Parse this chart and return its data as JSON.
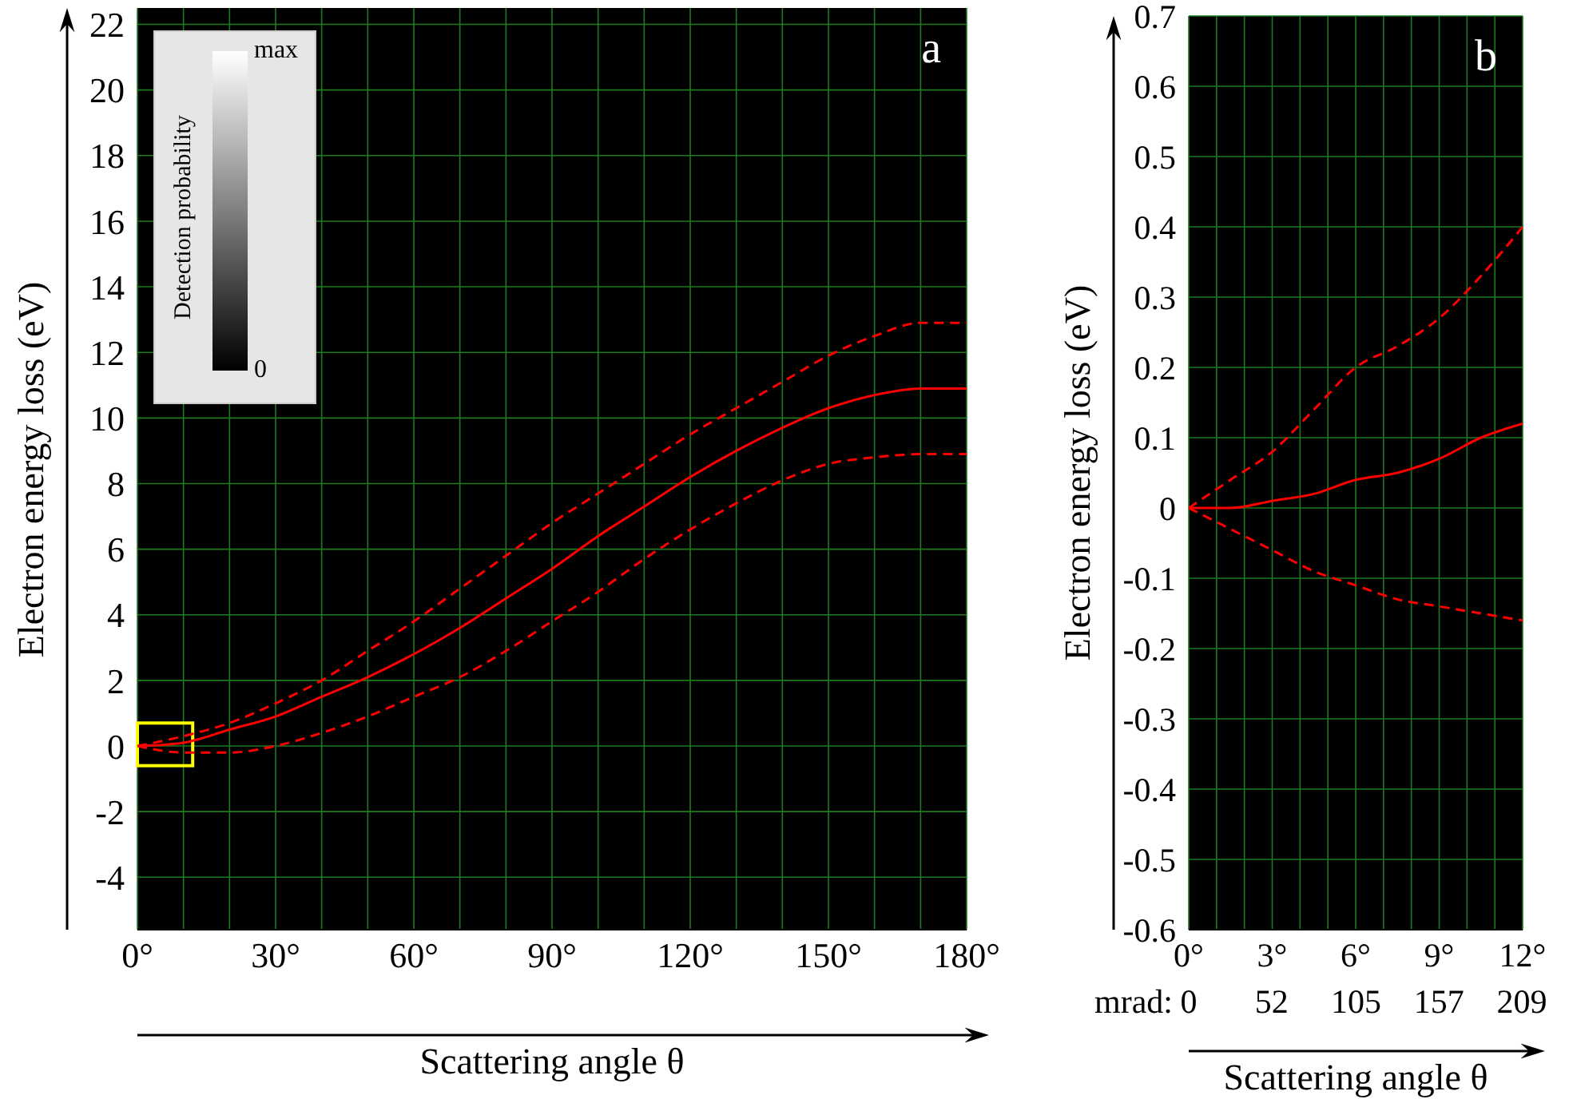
{
  "chart_data": [
    {
      "type": "line",
      "xlabel": "Scattering angle θ",
      "ylabel": "Electron energy loss (eV)",
      "clabel": "Detection probability",
      "annotations": [
        "a",
        "max",
        "0"
      ],
      "x": [
        0,
        10,
        20,
        30,
        40,
        50,
        60,
        70,
        80,
        90,
        100,
        110,
        120,
        130,
        140,
        150,
        160,
        170,
        180
      ],
      "series": [
        {
          "color": "#ff0000",
          "line_style": "solid",
          "values": [
            0,
            0.1,
            0.5,
            0.9,
            1.5,
            2.1,
            2.8,
            3.6,
            4.5,
            5.4,
            6.4,
            7.3,
            8.2,
            9.0,
            9.7,
            10.3,
            10.7,
            10.9,
            10.9
          ]
        },
        {
          "color": "#ff0000",
          "line_style": "dashed",
          "values": [
            0,
            0.3,
            0.7,
            1.3,
            2.0,
            2.9,
            3.8,
            4.8,
            5.8,
            6.8,
            7.7,
            8.6,
            9.5,
            10.3,
            11.1,
            11.9,
            12.5,
            12.9,
            12.9
          ]
        },
        {
          "color": "#ff0000",
          "line_style": "dashed",
          "values": [
            0,
            -0.2,
            -0.2,
            0.0,
            0.4,
            0.9,
            1.5,
            2.1,
            2.9,
            3.8,
            4.7,
            5.7,
            6.6,
            7.4,
            8.1,
            8.6,
            8.8,
            8.9,
            8.9
          ]
        }
      ],
      "xlim": [
        0,
        180
      ],
      "ylim": [
        -5.6,
        22.5
      ],
      "xticks": [
        {
          "value": 0,
          "label": "0°"
        },
        {
          "value": 10,
          "label": null
        },
        {
          "value": 20,
          "label": null
        },
        {
          "value": 30,
          "label": "30°"
        },
        {
          "value": 40,
          "label": null
        },
        {
          "value": 50,
          "label": null
        },
        {
          "value": 60,
          "label": "60°"
        },
        {
          "value": 70,
          "label": null
        },
        {
          "value": 80,
          "label": null
        },
        {
          "value": 90,
          "label": "90°"
        },
        {
          "value": 100,
          "label": null
        },
        {
          "value": 110,
          "label": null
        },
        {
          "value": 120,
          "label": "120°"
        },
        {
          "value": 130,
          "label": null
        },
        {
          "value": 140,
          "label": null
        },
        {
          "value": 150,
          "label": "150°"
        },
        {
          "value": 160,
          "label": null
        },
        {
          "value": 170,
          "label": null
        },
        {
          "value": 180,
          "label": "180°"
        }
      ],
      "yticks": [
        -4,
        -2,
        0,
        2,
        4,
        6,
        8,
        10,
        12,
        14,
        16,
        18,
        20,
        22
      ],
      "grid": true,
      "legend": false,
      "marker": "none"
    },
    {
      "type": "line",
      "xlabel": "Scattering angle θ",
      "ylabel": "Electron energy loss (eV)",
      "x2label": "mrad:",
      "annotations": [
        "b"
      ],
      "x": [
        0,
        1.5,
        3,
        4.5,
        6,
        7.5,
        9,
        10.5,
        12
      ],
      "series": [
        {
          "color": "#ff0000",
          "line_style": "solid",
          "values": [
            0,
            0.0,
            0.01,
            0.02,
            0.04,
            0.05,
            0.07,
            0.1,
            0.12
          ]
        },
        {
          "color": "#ff0000",
          "line_style": "dashed",
          "values": [
            0,
            0.04,
            0.08,
            0.14,
            0.2,
            0.23,
            0.27,
            0.33,
            0.4
          ]
        },
        {
          "color": "#ff0000",
          "line_style": "dashed",
          "values": [
            0,
            -0.03,
            -0.06,
            -0.09,
            -0.11,
            -0.13,
            -0.14,
            -0.15,
            -0.16
          ]
        }
      ],
      "xlim": [
        0,
        12
      ],
      "ylim": [
        -0.6,
        0.7
      ],
      "x2lim": [
        0,
        209.44
      ],
      "xticks": [
        {
          "value": 0,
          "label": "0°"
        },
        {
          "value": 1,
          "label": null
        },
        {
          "value": 2,
          "label": null
        },
        {
          "value": 3,
          "label": "3°"
        },
        {
          "value": 4,
          "label": null
        },
        {
          "value": 5,
          "label": null
        },
        {
          "value": 6,
          "label": "6°"
        },
        {
          "value": 7,
          "label": null
        },
        {
          "value": 8,
          "label": null
        },
        {
          "value": 9,
          "label": "9°"
        },
        {
          "value": 10,
          "label": null
        },
        {
          "value": 11,
          "label": null
        },
        {
          "value": 12,
          "label": "12°"
        }
      ],
      "x2ticks": [
        0,
        52,
        105,
        157,
        209
      ],
      "yticks": [
        -0.6,
        -0.5,
        -0.4,
        -0.3,
        -0.2,
        -0.1,
        0,
        0.1,
        0.2,
        0.3,
        0.4,
        0.5,
        0.6,
        0.7
      ],
      "grid": true,
      "legend": false,
      "marker": "none"
    }
  ]
}
